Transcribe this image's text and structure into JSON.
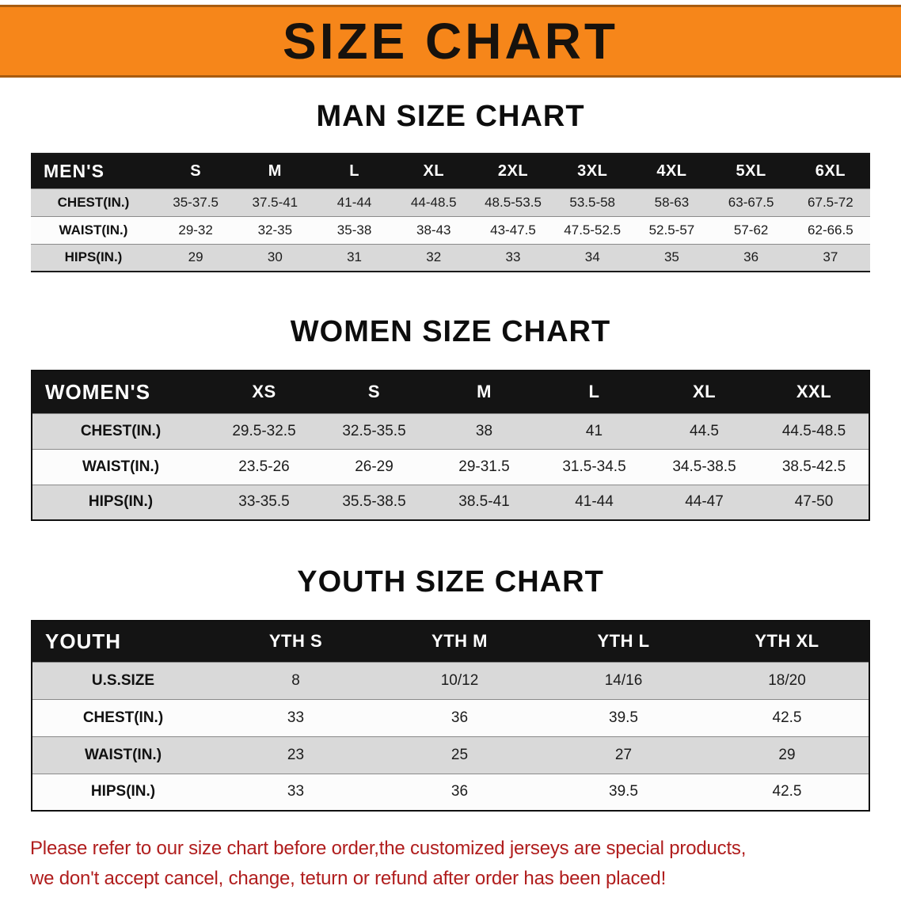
{
  "banner": {
    "title": "SIZE CHART",
    "bg_color": "#f6861a",
    "text_color": "#17120d"
  },
  "colors": {
    "table_header_bg": "#141414",
    "row_gray": "#d9d9d9",
    "row_white": "#fcfcfc",
    "footer_text": "#b01d1d"
  },
  "chart_data": [
    {
      "type": "table",
      "title": "MAN SIZE CHART",
      "corner_label": "MEN'S",
      "columns": [
        "S",
        "M",
        "L",
        "XL",
        "2XL",
        "3XL",
        "4XL",
        "5XL",
        "6XL"
      ],
      "rows": [
        {
          "label": "CHEST(IN.)",
          "values": [
            "35-37.5",
            "37.5-41",
            "41-44",
            "44-48.5",
            "48.5-53.5",
            "53.5-58",
            "58-63",
            "63-67.5",
            "67.5-72"
          ]
        },
        {
          "label": "WAIST(IN.)",
          "values": [
            "29-32",
            "32-35",
            "35-38",
            "38-43",
            "43-47.5",
            "47.5-52.5",
            "52.5-57",
            "57-62",
            "62-66.5"
          ]
        },
        {
          "label": "HIPS(IN.)",
          "values": [
            "29",
            "30",
            "31",
            "32",
            "33",
            "34",
            "35",
            "36",
            "37"
          ]
        }
      ]
    },
    {
      "type": "table",
      "title": "WOMEN SIZE CHART",
      "corner_label": "WOMEN'S",
      "columns": [
        "XS",
        "S",
        "M",
        "L",
        "XL",
        "XXL"
      ],
      "rows": [
        {
          "label": "CHEST(IN.)",
          "values": [
            "29.5-32.5",
            "32.5-35.5",
            "38",
            "41",
            "44.5",
            "44.5-48.5"
          ]
        },
        {
          "label": "WAIST(IN.)",
          "values": [
            "23.5-26",
            "26-29",
            "29-31.5",
            "31.5-34.5",
            "34.5-38.5",
            "38.5-42.5"
          ]
        },
        {
          "label": "HIPS(IN.)",
          "values": [
            "33-35.5",
            "35.5-38.5",
            "38.5-41",
            "41-44",
            "44-47",
            "47-50"
          ]
        }
      ]
    },
    {
      "type": "table",
      "title": "YOUTH SIZE CHART",
      "corner_label": "YOUTH",
      "columns": [
        "YTH S",
        "YTH M",
        "YTH L",
        "YTH XL"
      ],
      "rows": [
        {
          "label": "U.S.SIZE",
          "values": [
            "8",
            "10/12",
            "14/16",
            "18/20"
          ]
        },
        {
          "label": "CHEST(IN.)",
          "values": [
            "33",
            "36",
            "39.5",
            "42.5"
          ]
        },
        {
          "label": "WAIST(IN.)",
          "values": [
            "23",
            "25",
            "27",
            "29"
          ]
        },
        {
          "label": "HIPS(IN.)",
          "values": [
            "33",
            "36",
            "39.5",
            "42.5"
          ]
        }
      ]
    }
  ],
  "footer": {
    "line1": "Please refer to our size chart before order,the customized jerseys are special products,",
    "line2": "we don't accept cancel, change, teturn or refund after order has been placed!"
  }
}
